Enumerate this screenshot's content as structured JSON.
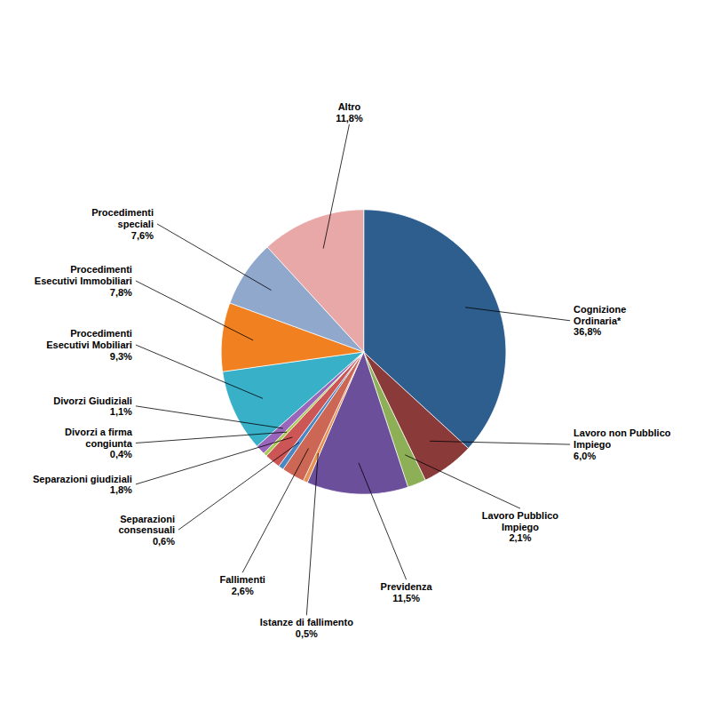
{
  "chart_data": {
    "type": "pie",
    "categories": [
      "Cognizione\nOrdinaria*",
      "Lavoro non Pubblico\nImpiego",
      "Lavoro Pubblico\nImpiego",
      "Previdenza",
      "Istanze di fallimento",
      "Fallimenti",
      "Separazioni\nconsensuali",
      "Separazioni giudiziali",
      "Divorzi a firma\ncongiunta",
      "Divorzi Giudiziali",
      "Procedimenti\nEsecutivi Mobiliari",
      "Procedimenti\nEsecutivi Immobiliari",
      "Procedimenti\nspeciali",
      "Altro"
    ],
    "values": [
      36.8,
      6.0,
      2.1,
      11.5,
      0.5,
      2.6,
      0.6,
      1.8,
      0.4,
      1.1,
      9.3,
      7.8,
      7.6,
      11.8
    ],
    "value_labels": [
      "36,8%",
      "6,0%",
      "2,1%",
      "11,5%",
      "0,5%",
      "2,6%",
      "0,6%",
      "1,8%",
      "0,4%",
      "1,1%",
      "9,3%",
      "7,8%",
      "7,6%",
      "11,8%"
    ],
    "colors": [
      "#2E5E8E",
      "#8B3A3A",
      "#8DB056",
      "#6B4F9B",
      "#E89050",
      "#CC6655",
      "#4A88C4",
      "#CC5555",
      "#AACC55",
      "#9966BB",
      "#38B0C8",
      "#F08020",
      "#90A8CC",
      "#E8A8A8"
    ],
    "data_labels": true
  }
}
